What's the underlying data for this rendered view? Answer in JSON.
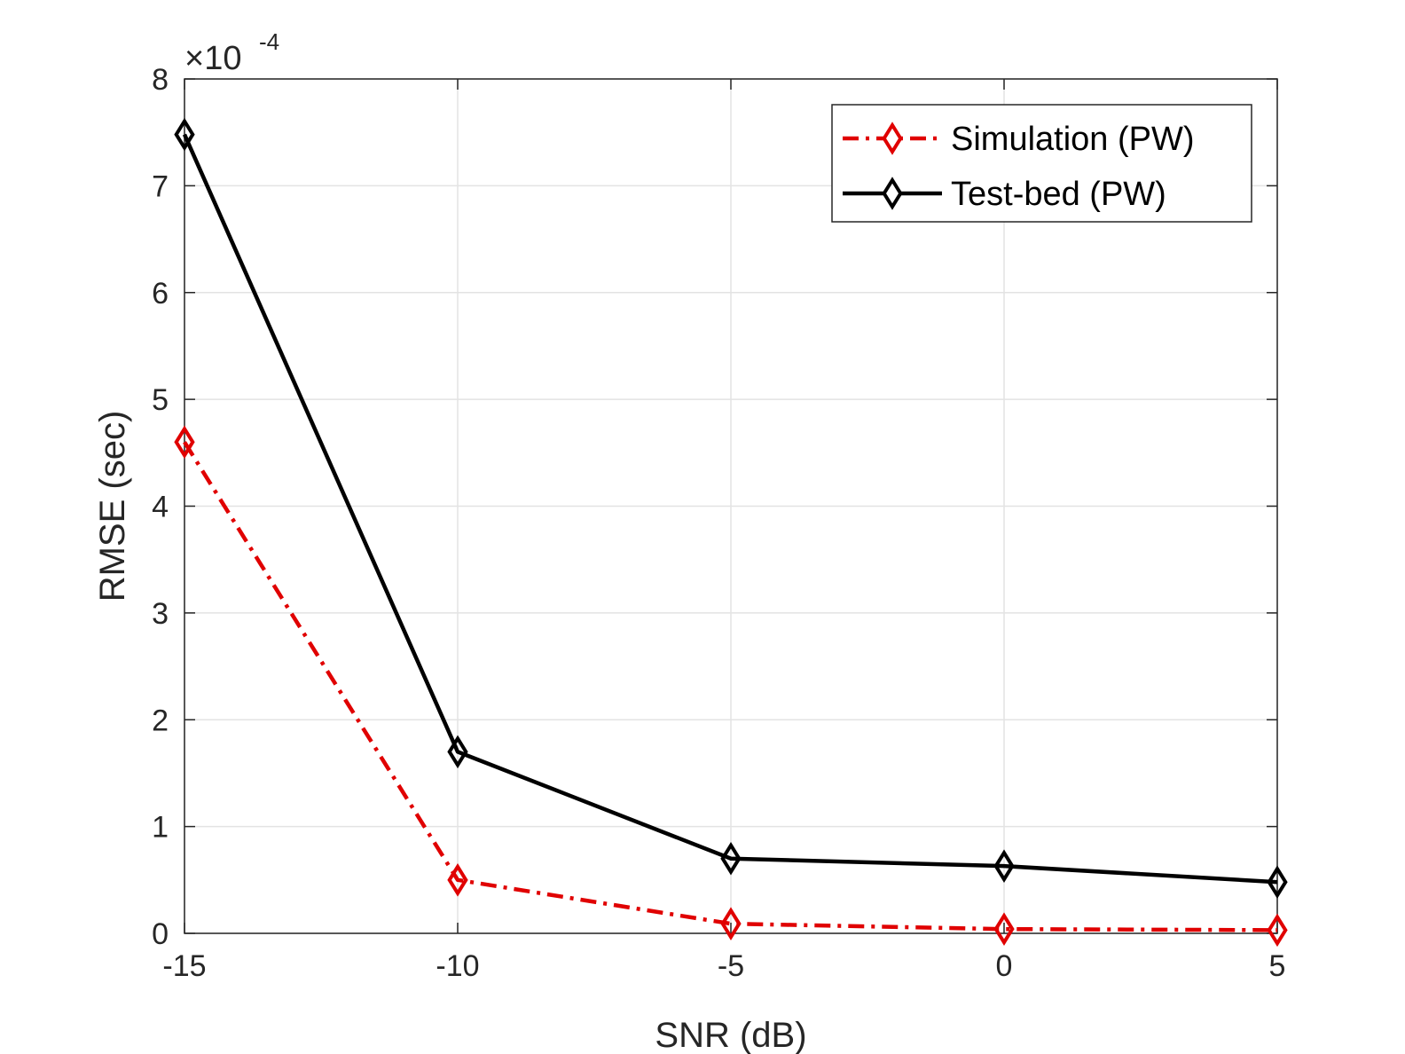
{
  "chart_data": {
    "type": "line",
    "xlabel": "SNR (dB)",
    "ylabel": "RMSE (sec)",
    "x": [
      -15,
      -10,
      -5,
      0,
      5
    ],
    "xlim": [
      -15,
      5
    ],
    "ylim": [
      0,
      8
    ],
    "x_ticks": [
      "-15",
      "-10",
      "-5",
      "0",
      "5"
    ],
    "y_ticks": [
      "0",
      "1",
      "2",
      "3",
      "4",
      "5",
      "6",
      "7",
      "8"
    ],
    "y_exponent": {
      "base": "×10",
      "power": "-4"
    },
    "grid": true,
    "legend_position": "top-right",
    "series": [
      {
        "name": "Simulation (PW)",
        "values": [
          4.6,
          0.5,
          0.09,
          0.04,
          0.03
        ],
        "color": "#e00000",
        "line_style": "dash-dot",
        "marker": "diamond"
      },
      {
        "name": "Test-bed (PW)",
        "values": [
          7.48,
          1.7,
          0.7,
          0.63,
          0.48
        ],
        "color": "#000000",
        "line_style": "solid",
        "marker": "diamond"
      }
    ]
  }
}
